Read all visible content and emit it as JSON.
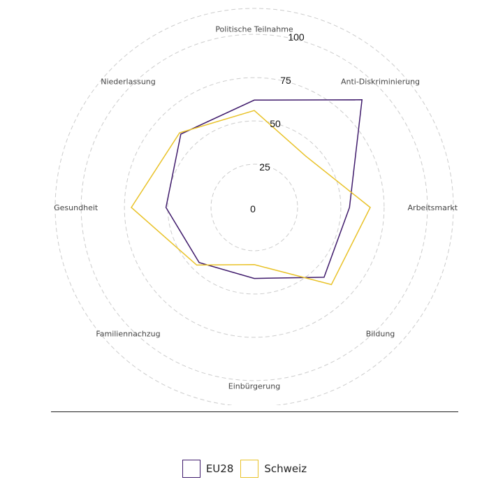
{
  "chart_data": {
    "type": "radar",
    "axes": [
      "Politische Teilnahme",
      "Anti-Diskriminierung",
      "Arbeitsmarkt",
      "Bildung",
      "Einbürgerung",
      "Familiennachzug",
      "Gesundheit",
      "Niederlassung"
    ],
    "rlim": [
      0,
      115
    ],
    "ticks": [
      0,
      25,
      50,
      75,
      100
    ],
    "grid": true,
    "legend_position": "bottom",
    "series": [
      {
        "name": "EU28",
        "color": "#3f1a6b",
        "values": [
          62,
          88,
          55,
          57,
          41,
          45,
          51,
          60
        ]
      },
      {
        "name": "Schweiz",
        "color": "#e9c228",
        "values": [
          56,
          42,
          67,
          63,
          33,
          47,
          71,
          61
        ]
      }
    ]
  },
  "legend": [
    {
      "label": "EU28",
      "color": "#3f1a6b"
    },
    {
      "label": "Schweiz",
      "color": "#e9c228"
    }
  ],
  "colors": {
    "grid": "#cccccc",
    "divider": "#222222"
  }
}
